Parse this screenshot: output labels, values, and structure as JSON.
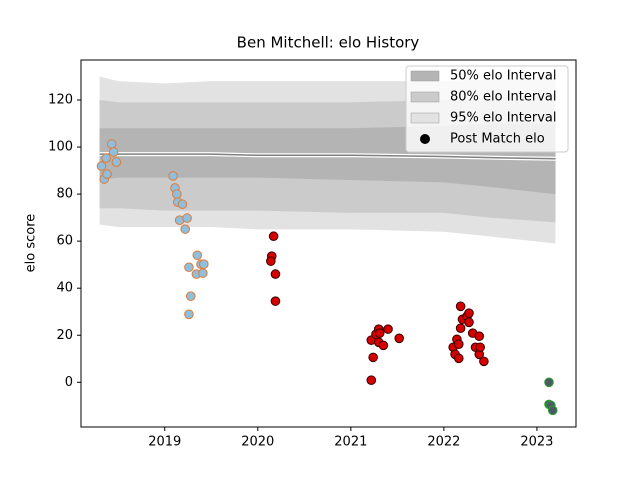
{
  "chart_data": {
    "type": "scatter",
    "title": "Ben Mitchell: elo History",
    "ylabel": "elo score",
    "xlim": [
      2018.1,
      2023.42
    ],
    "ylim": [
      -19,
      137
    ],
    "xticks": [
      2019,
      2020,
      2021,
      2022,
      2023
    ],
    "yticks": [
      0,
      20,
      40,
      60,
      80,
      100,
      120
    ],
    "legend": "upper right",
    "band_x": [
      2018.3,
      2018.5,
      2019.0,
      2019.5,
      2020.0,
      2021.0,
      2022.0,
      2022.5,
      2023.2
    ],
    "bands": [
      {
        "name": "95% elo Interval",
        "color": "#e2e2e2",
        "upper": [
          130,
          128,
          127,
          128,
          128,
          128,
          128,
          129,
          130
        ],
        "lower": [
          67,
          66,
          66,
          66,
          65,
          65,
          64,
          62,
          59
        ]
      },
      {
        "name": "80% elo Interval",
        "color": "#cbcbcb",
        "upper": [
          120,
          119,
          119,
          119,
          119,
          119,
          120,
          121,
          122
        ],
        "lower": [
          74,
          74,
          73,
          73,
          73,
          72,
          72,
          70,
          68
        ]
      },
      {
        "name": "50% elo Interval",
        "color": "#b4b4b4",
        "upper": [
          108,
          108,
          108,
          108,
          108,
          108,
          109,
          110,
          110
        ],
        "lower": [
          86,
          87,
          87,
          87,
          87,
          86,
          85,
          83,
          80
        ]
      }
    ],
    "mean_line": {
      "values": [
        97,
        97,
        97,
        97,
        96.5,
        96.5,
        96,
        95.5,
        95
      ],
      "color": "#808080"
    },
    "series": [
      {
        "name": "Post Match elo",
        "color": "#000000",
        "x": [
          2018.32,
          2018.35,
          2018.38,
          2018.37,
          2018.43,
          2018.45,
          2018.48,
          2019.09,
          2019.11,
          2019.13,
          2019.14,
          2019.19,
          2019.16,
          2019.24,
          2019.22,
          2019.26,
          2019.28,
          2019.26,
          2019.35,
          2019.39,
          2019.42,
          2019.34,
          2019.41,
          2020.17,
          2020.15,
          2020.14,
          2020.19,
          2020.19,
          2021.22,
          2021.24,
          2021.22,
          2021.27,
          2021.3,
          2021.31,
          2021.3,
          2021.35,
          2021.4,
          2021.52,
          2022.1,
          2022.12,
          2022.16,
          2022.14,
          2022.16,
          2022.18,
          2022.2,
          2022.18,
          2022.25,
          2022.27,
          2022.27,
          2022.31,
          2022.34,
          2022.38,
          2022.39,
          2022.38,
          2022.43,
          2023.13,
          2023.13,
          2023.15,
          2023.17
        ],
        "values": [
          91.9,
          86.4,
          88.5,
          95.3,
          101.3,
          97.9,
          93.6,
          87.7,
          82.6,
          80.0,
          76.6,
          75.7,
          68.9,
          69.8,
          65.1,
          48.9,
          36.6,
          28.9,
          54.0,
          50.2,
          50.2,
          46.0,
          46.4,
          62.1,
          53.6,
          51.5,
          46.0,
          34.5,
          0.9,
          10.6,
          17.9,
          20.4,
          22.6,
          20.9,
          17.0,
          15.7,
          22.6,
          18.7,
          14.9,
          11.9,
          10.2,
          18.3,
          16.2,
          23.0,
          26.8,
          32.3,
          28.1,
          29.4,
          25.5,
          20.9,
          14.9,
          11.9,
          14.9,
          19.6,
          8.9,
          0,
          -9.4,
          -9.8,
          -11.9
        ],
        "colors": [
          "#8fbfdc",
          "#8fbfdc",
          "#8fbfdc",
          "#8fbfdc",
          "#8fbfdc",
          "#8fbfdc",
          "#8fbfdc",
          "#8fbfdc",
          "#8fbfdc",
          "#8fbfdc",
          "#8fbfdc",
          "#8fbfdc",
          "#8fbfdc",
          "#8fbfdc",
          "#8fbfdc",
          "#8fbfdc",
          "#8fbfdc",
          "#8fbfdc",
          "#8fbfdc",
          "#8fbfdc",
          "#8fbfdc",
          "#8fbfdc",
          "#8fbfdc",
          "#d40000",
          "#d40000",
          "#d40000",
          "#d40000",
          "#d40000",
          "#d40000",
          "#d40000",
          "#d40000",
          "#d40000",
          "#d40000",
          "#d40000",
          "#d40000",
          "#d40000",
          "#d40000",
          "#d40000",
          "#d40000",
          "#d40000",
          "#d40000",
          "#d40000",
          "#d40000",
          "#d40000",
          "#d40000",
          "#d40000",
          "#d40000",
          "#d40000",
          "#d40000",
          "#d40000",
          "#d40000",
          "#d40000",
          "#d40000",
          "#d40000",
          "#d40000",
          "#4a5a66",
          "#4a5a66",
          "#4a5a66",
          "#4a5a66"
        ],
        "edgecolors": [
          "#e07b39",
          "#e07b39",
          "#e07b39",
          "#e07b39",
          "#e07b39",
          "#e07b39",
          "#e07b39",
          "#e07b39",
          "#e07b39",
          "#e07b39",
          "#e07b39",
          "#e07b39",
          "#e07b39",
          "#e07b39",
          "#e07b39",
          "#e07b39",
          "#e07b39",
          "#e07b39",
          "#e07b39",
          "#e07b39",
          "#e07b39",
          "#e07b39",
          "#e07b39",
          "#3a0000",
          "#3a0000",
          "#3a0000",
          "#3a0000",
          "#3a0000",
          "#3a0000",
          "#3a0000",
          "#3a0000",
          "#3a0000",
          "#3a0000",
          "#3a0000",
          "#3a0000",
          "#3a0000",
          "#3a0000",
          "#3a0000",
          "#3a0000",
          "#3a0000",
          "#3a0000",
          "#3a0000",
          "#3a0000",
          "#3a0000",
          "#3a0000",
          "#3a0000",
          "#3a0000",
          "#3a0000",
          "#3a0000",
          "#3a0000",
          "#3a0000",
          "#3a0000",
          "#3a0000",
          "#3a0000",
          "#3a0000",
          "#2ca02c",
          "#2ca02c",
          "#2ca02c",
          "#2ca02c"
        ]
      }
    ]
  }
}
